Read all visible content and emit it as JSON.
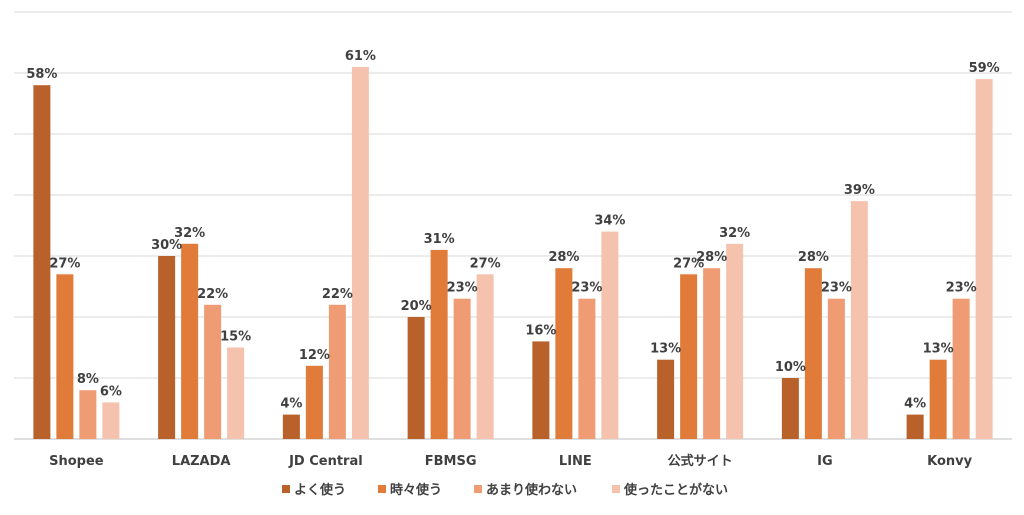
{
  "chart_data": {
    "type": "bar",
    "categories": [
      "Shopee",
      "LAZADA",
      "JD Central",
      "FBMSG",
      "LINE",
      "公式サイト",
      "IG",
      "Konvy"
    ],
    "series": [
      {
        "name": "よく使う",
        "color": "#b8612a",
        "values": [
          58,
          30,
          4,
          20,
          16,
          13,
          10,
          4
        ]
      },
      {
        "name": "時々使う",
        "color": "#e07b39",
        "values": [
          27,
          32,
          12,
          31,
          28,
          27,
          28,
          13
        ]
      },
      {
        "name": "あまり使わない",
        "color": "#ef9c74",
        "values": [
          8,
          22,
          22,
          23,
          23,
          28,
          23,
          23
        ]
      },
      {
        "name": "使ったことがない",
        "color": "#f5c2ad",
        "values": [
          6,
          15,
          61,
          27,
          34,
          32,
          39,
          59
        ]
      }
    ],
    "value_suffix": "%",
    "ylim": [
      0,
      70
    ],
    "grid": true,
    "legend_position": "bottom"
  }
}
